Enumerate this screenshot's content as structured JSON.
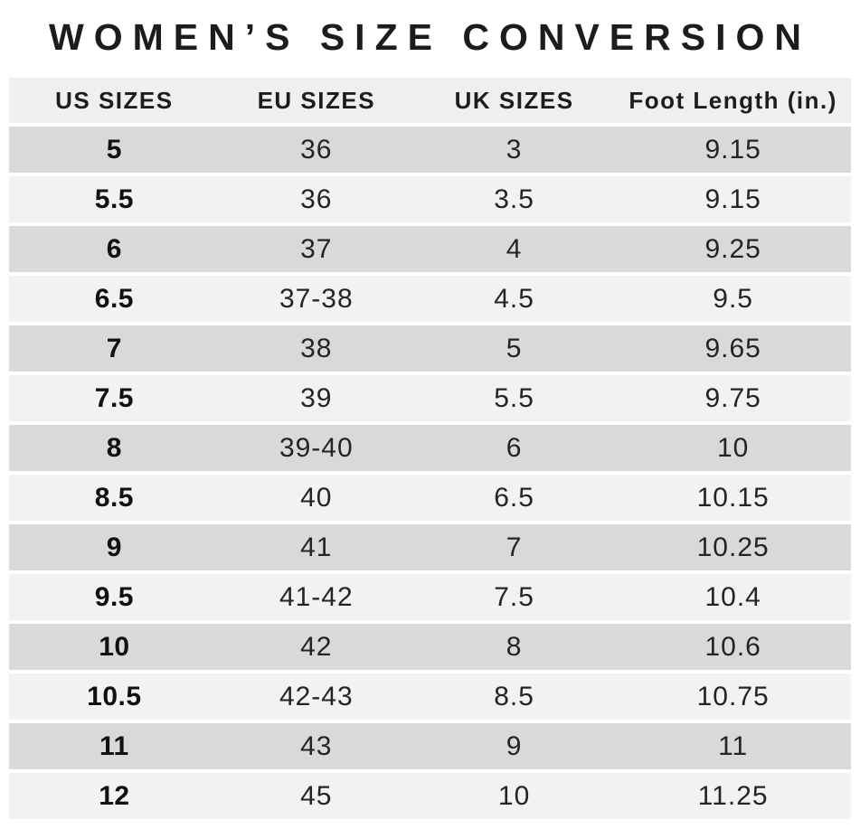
{
  "title": "WOMEN’S SIZE CONVERSION",
  "table": {
    "columns": [
      {
        "key": "us",
        "label": "US SIZES"
      },
      {
        "key": "eu",
        "label": "EU SIZES"
      },
      {
        "key": "uk",
        "label": "UK SIZES"
      },
      {
        "key": "foot",
        "label": "Foot Length (in.)"
      }
    ],
    "rows": [
      {
        "us": "5",
        "eu": "36",
        "uk": "3",
        "foot": "9.15"
      },
      {
        "us": "5.5",
        "eu": "36",
        "uk": "3.5",
        "foot": "9.15"
      },
      {
        "us": "6",
        "eu": "37",
        "uk": "4",
        "foot": "9.25"
      },
      {
        "us": "6.5",
        "eu": "37-38",
        "uk": "4.5",
        "foot": "9.5"
      },
      {
        "us": "7",
        "eu": "38",
        "uk": "5",
        "foot": "9.65"
      },
      {
        "us": "7.5",
        "eu": "39",
        "uk": "5.5",
        "foot": "9.75"
      },
      {
        "us": "8",
        "eu": "39-40",
        "uk": "6",
        "foot": "10"
      },
      {
        "us": "8.5",
        "eu": "40",
        "uk": "6.5",
        "foot": "10.15"
      },
      {
        "us": "9",
        "eu": "41",
        "uk": "7",
        "foot": "10.25"
      },
      {
        "us": "9.5",
        "eu": "41-42",
        "uk": "7.5",
        "foot": "10.4"
      },
      {
        "us": "10",
        "eu": "42",
        "uk": "8",
        "foot": "10.6"
      },
      {
        "us": "10.5",
        "eu": "42-43",
        "uk": "8.5",
        "foot": "10.75"
      },
      {
        "us": "11",
        "eu": "43",
        "uk": "9",
        "foot": "11"
      },
      {
        "us": "12",
        "eu": "45",
        "uk": "10",
        "foot": "11.25"
      }
    ]
  },
  "colors": {
    "header_bg": "#f0efed",
    "row_dark": "#d9d9d8",
    "row_light": "#f3f2f0",
    "title_text": "#1c1c1c",
    "body_text": "#242424"
  }
}
